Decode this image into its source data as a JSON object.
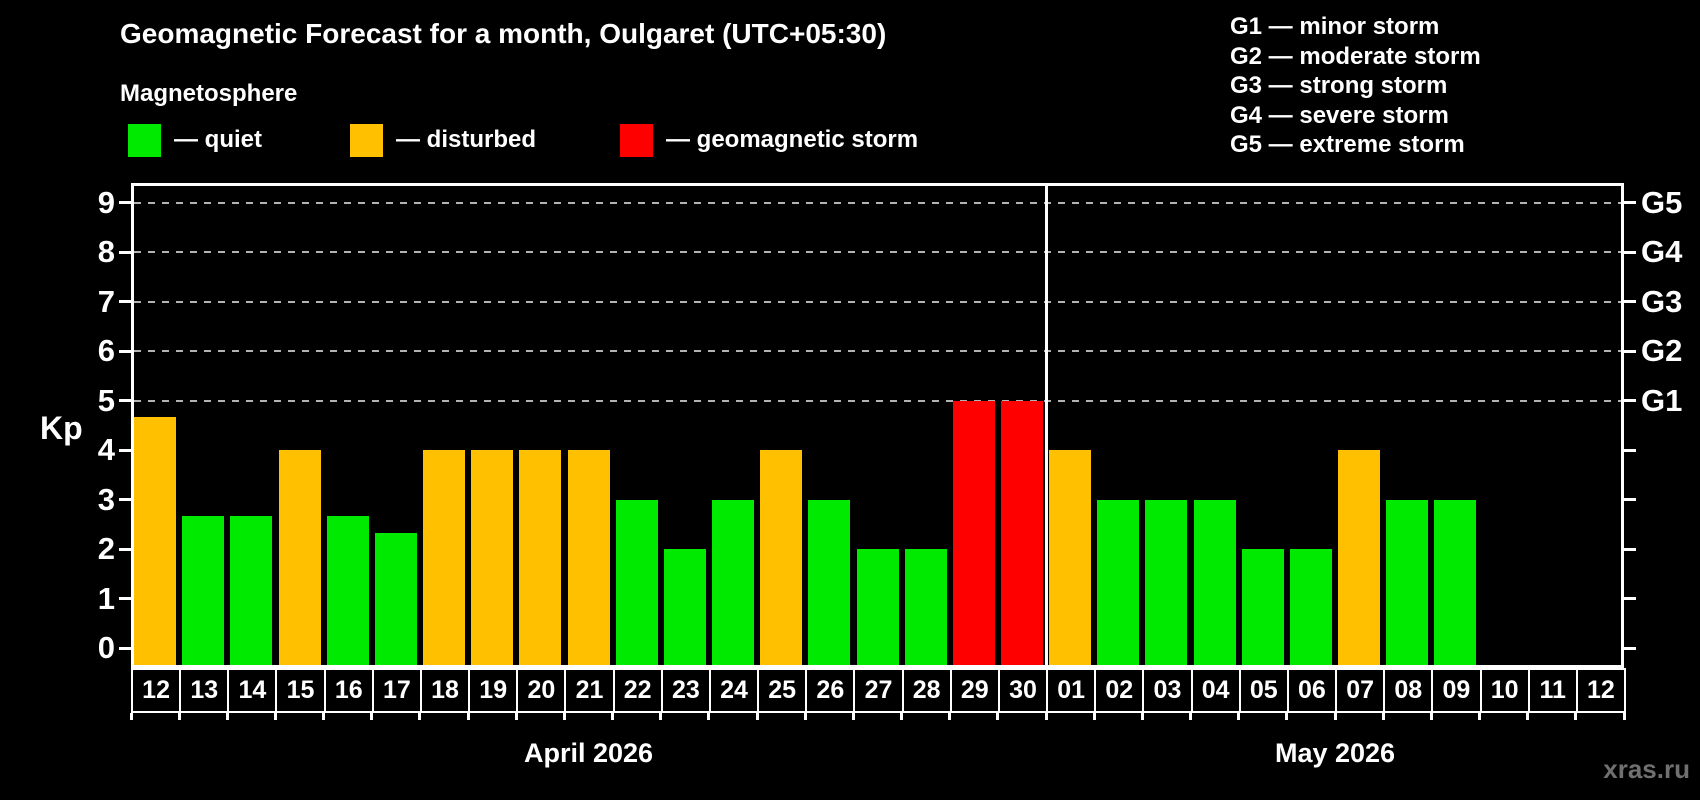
{
  "watermark": "xras.ru",
  "chart_data": {
    "type": "bar",
    "title": "Geomagnetic Forecast for a month, Oulgaret (UTC+05:30)",
    "subtitle": "Magnetosphere",
    "ylabel": "Kp",
    "ylim": [
      -0.4,
      9.4
    ],
    "yticks": [
      0,
      1,
      2,
      3,
      4,
      5,
      6,
      7,
      8,
      9
    ],
    "gridlines": [
      5,
      6,
      7,
      8,
      9
    ],
    "grid": "dashed horizontal lines at storm levels only",
    "legend_position": "top-left",
    "status_colors": {
      "quiet": "#00ea00",
      "disturbed": "#ffc000",
      "storm": "#ff0000"
    },
    "legend": [
      {
        "label": "— quiet",
        "status": "quiet"
      },
      {
        "label": "— disturbed",
        "status": "disturbed"
      },
      {
        "label": "— geomagnetic storm",
        "status": "storm"
      }
    ],
    "g_scale": [
      {
        "label": "G1",
        "kp": 5,
        "legend": "G1 — minor storm"
      },
      {
        "label": "G2",
        "kp": 6,
        "legend": "G2 — moderate storm"
      },
      {
        "label": "G3",
        "kp": 7,
        "legend": "G3 — strong storm"
      },
      {
        "label": "G4",
        "kp": 8,
        "legend": "G4 — severe storm"
      },
      {
        "label": "G5",
        "kp": 9,
        "legend": "G5 — extreme storm"
      }
    ],
    "months": [
      {
        "label": "April 2026",
        "days": 19
      },
      {
        "label": "May 2026",
        "days": 12
      }
    ],
    "bars": [
      {
        "day": "12",
        "value": 4.67,
        "status": "disturbed"
      },
      {
        "day": "13",
        "value": 2.67,
        "status": "quiet"
      },
      {
        "day": "14",
        "value": 2.67,
        "status": "quiet"
      },
      {
        "day": "15",
        "value": 4,
        "status": "disturbed"
      },
      {
        "day": "16",
        "value": 2.67,
        "status": "quiet"
      },
      {
        "day": "17",
        "value": 2.33,
        "status": "quiet"
      },
      {
        "day": "18",
        "value": 4,
        "status": "disturbed"
      },
      {
        "day": "19",
        "value": 4,
        "status": "disturbed"
      },
      {
        "day": "20",
        "value": 4,
        "status": "disturbed"
      },
      {
        "day": "21",
        "value": 4,
        "status": "disturbed"
      },
      {
        "day": "22",
        "value": 3,
        "status": "quiet"
      },
      {
        "day": "23",
        "value": 2,
        "status": "quiet"
      },
      {
        "day": "24",
        "value": 3,
        "status": "quiet"
      },
      {
        "day": "25",
        "value": 4,
        "status": "disturbed"
      },
      {
        "day": "26",
        "value": 3,
        "status": "quiet"
      },
      {
        "day": "27",
        "value": 2,
        "status": "quiet"
      },
      {
        "day": "28",
        "value": 2,
        "status": "quiet"
      },
      {
        "day": "29",
        "value": 5,
        "status": "storm"
      },
      {
        "day": "30",
        "value": 5,
        "status": "storm"
      },
      {
        "day": "01",
        "value": 4,
        "status": "disturbed"
      },
      {
        "day": "02",
        "value": 3,
        "status": "quiet"
      },
      {
        "day": "03",
        "value": 3,
        "status": "quiet"
      },
      {
        "day": "04",
        "value": 3,
        "status": "quiet"
      },
      {
        "day": "05",
        "value": 2,
        "status": "quiet"
      },
      {
        "day": "06",
        "value": 2,
        "status": "quiet"
      },
      {
        "day": "07",
        "value": 4,
        "status": "disturbed"
      },
      {
        "day": "08",
        "value": 3,
        "status": "quiet"
      },
      {
        "day": "09",
        "value": 3,
        "status": "quiet"
      },
      {
        "day": "10",
        "value": null,
        "status": "none"
      },
      {
        "day": "11",
        "value": null,
        "status": "none"
      },
      {
        "day": "12",
        "value": null,
        "status": "none"
      }
    ]
  }
}
